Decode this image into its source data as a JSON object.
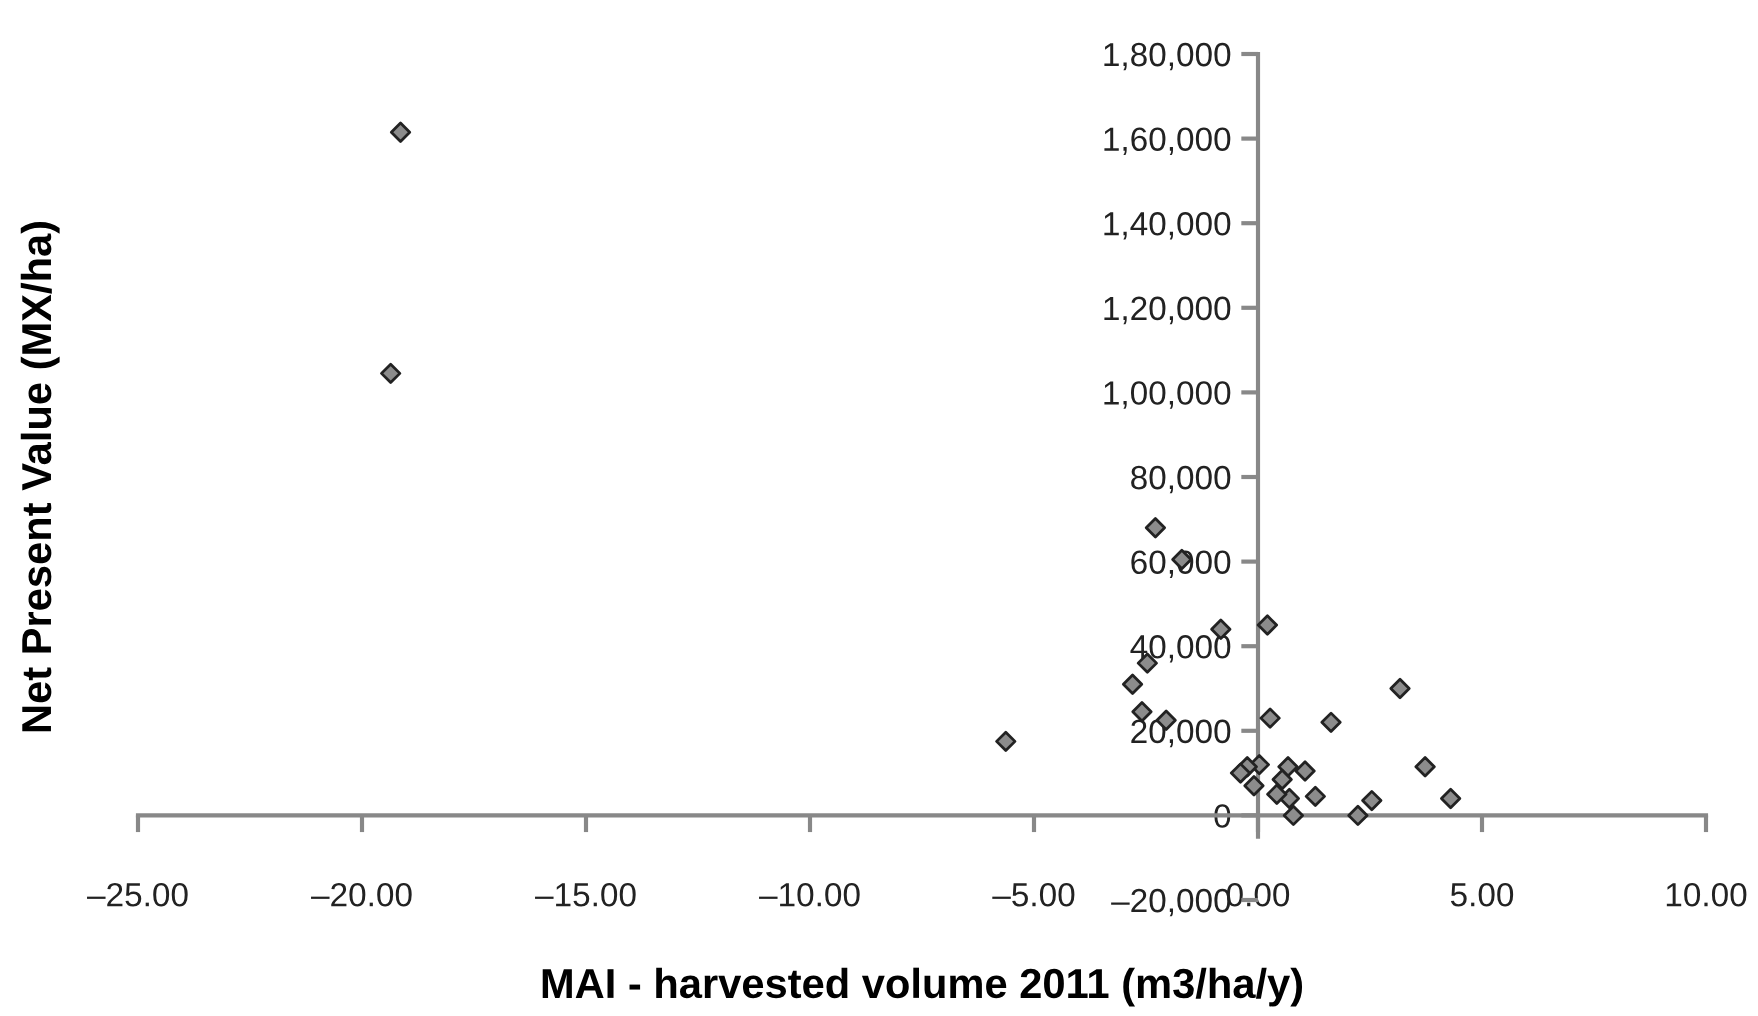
{
  "chart_data": {
    "type": "scatter",
    "xlabel": "MAI - harvested volume 2011 (m3/ha/y)",
    "ylabel": "Net Present Value (MX/ha)",
    "x": [
      -19.14,
      -19.36,
      -5.63,
      -2.29,
      -1.7,
      -0.83,
      0.21,
      -2.47,
      -2.8,
      -2.59,
      -2.05,
      0.27,
      1.63,
      3.17,
      3.73,
      4.3,
      2.54,
      2.23,
      0.79,
      1.28,
      1.05,
      0.67,
      0.54,
      0.7,
      0.42,
      0.03,
      -0.09,
      -0.24,
      -0.39
    ],
    "values": [
      161500,
      104500,
      17500,
      68000,
      60500,
      44000,
      45000,
      36000,
      31000,
      24500,
      22500,
      23000,
      22000,
      30000,
      11500,
      4000,
      3500,
      0,
      0,
      4500,
      10500,
      11500,
      8500,
      4000,
      5000,
      12000,
      7000,
      11500,
      10000
    ],
    "color": "#8c8c8c",
    "marker": "diamond",
    "xlim": [
      -25,
      10
    ],
    "xticks": [
      {
        "value": -25,
        "label": "–25.00"
      },
      {
        "value": -20,
        "label": "–20.00"
      },
      {
        "value": -15,
        "label": "–15.00"
      },
      {
        "value": -10,
        "label": "–10.00"
      },
      {
        "value": -5,
        "label": "–5.00"
      },
      {
        "value": 0,
        "label": "0.00"
      },
      {
        "value": 5,
        "label": "5.00"
      },
      {
        "value": 10,
        "label": "10.00"
      }
    ],
    "ylim": [
      -20000,
      180000
    ],
    "yticks": [
      {
        "value": -20000,
        "label": "–20,000"
      },
      0,
      {
        "value": 20000,
        "label": "20,000"
      },
      {
        "value": 40000,
        "label": "40,000"
      },
      {
        "value": 60000,
        "label": "60,000"
      },
      {
        "value": 80000,
        "label": "80,000"
      },
      {
        "value": 100000,
        "label": "1,00,000"
      },
      {
        "value": 120000,
        "label": "1,20,000"
      },
      {
        "value": 140000,
        "label": "1,40,000"
      },
      {
        "value": 160000,
        "label": "1,60,000"
      },
      {
        "value": 180000,
        "label": "1,80,000"
      }
    ],
    "grid": false,
    "legend": false
  }
}
